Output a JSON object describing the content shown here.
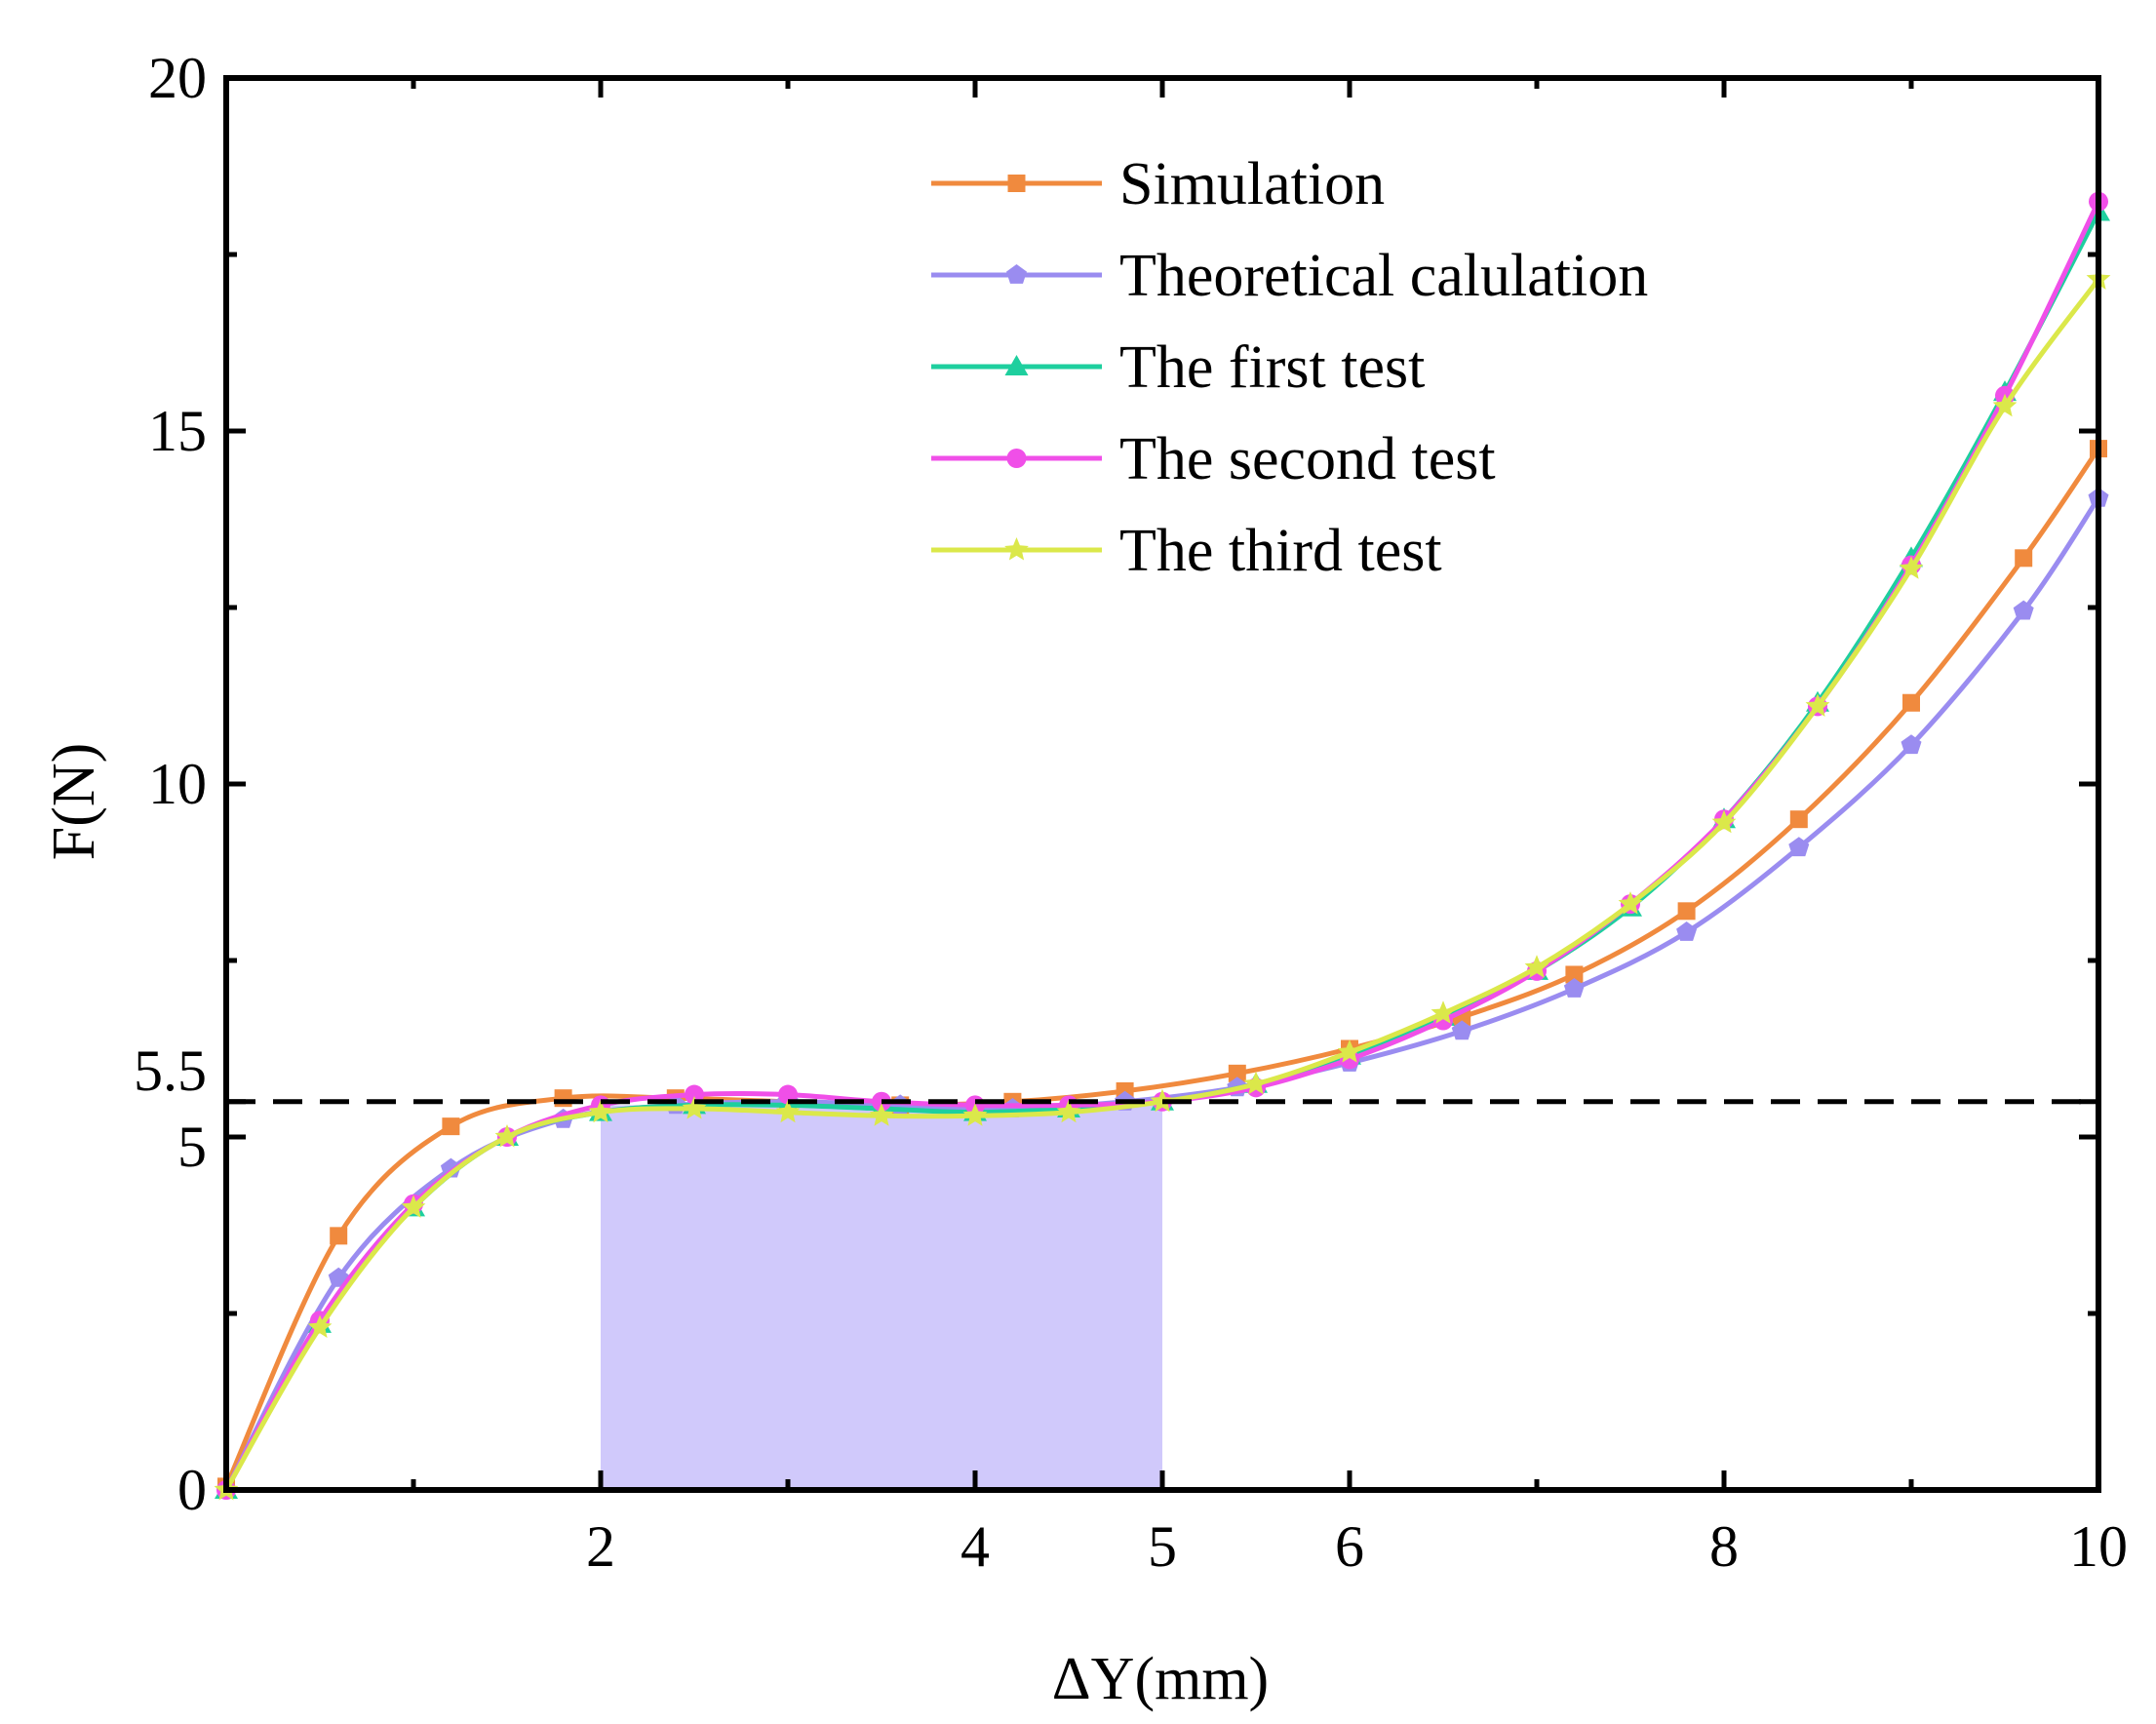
{
  "chart_data": {
    "type": "line",
    "title": "",
    "xlabel": "ΔY(mm)",
    "ylabel": "F(N)",
    "xlim": [
      0,
      10
    ],
    "ylim": [
      0,
      20
    ],
    "x_ticks": [
      {
        "value": 2,
        "label": "2"
      },
      {
        "value": 4,
        "label": "4"
      },
      {
        "value": 5,
        "label": "5"
      },
      {
        "value": 6,
        "label": "6"
      },
      {
        "value": 8,
        "label": "8"
      },
      {
        "value": 10,
        "label": "10"
      }
    ],
    "x_minor_ticks": [
      1,
      3,
      7,
      9
    ],
    "y_ticks": [
      {
        "value": 0,
        "label": "0"
      },
      {
        "value": 5,
        "label": "5"
      },
      {
        "value": 5.5,
        "label": "5.5"
      },
      {
        "value": 10,
        "label": "10"
      },
      {
        "value": 15,
        "label": "15"
      },
      {
        "value": 20,
        "label": "20"
      }
    ],
    "y_minor_ticks": [
      2.5,
      7.5,
      12.5,
      17.5
    ],
    "reference_line": {
      "y": 5.5,
      "style": "dashed",
      "color": "#000000"
    },
    "shaded_region": {
      "x_start": 2,
      "x_end": 5,
      "y_top": 5.45,
      "color": "#d0c9fb"
    },
    "legend_position": "top-center",
    "series": [
      {
        "name": "Simulation",
        "color": "#f08a3e",
        "marker": "square",
        "x": [
          0,
          0.6,
          1.2,
          1.8,
          2.4,
          3.0,
          3.6,
          4.2,
          4.8,
          5.4,
          6.0,
          6.6,
          7.2,
          7.8,
          8.4,
          9.0,
          9.6,
          10.0
        ],
        "y": [
          0.05,
          3.6,
          5.15,
          5.55,
          5.55,
          5.5,
          5.45,
          5.5,
          5.65,
          5.9,
          6.25,
          6.7,
          7.3,
          8.2,
          9.5,
          11.15,
          13.2,
          14.75
        ]
      },
      {
        "name": "Theoretical calulation",
        "color": "#9a8cf0",
        "marker": "pentagon",
        "x": [
          0,
          0.6,
          1.2,
          1.8,
          2.4,
          3.0,
          3.6,
          4.2,
          4.8,
          5.4,
          6.0,
          6.6,
          7.2,
          7.8,
          8.4,
          9.0,
          9.6,
          10.0
        ],
        "y": [
          0.0,
          3.0,
          4.55,
          5.25,
          5.45,
          5.5,
          5.45,
          5.4,
          5.5,
          5.7,
          6.05,
          6.5,
          7.1,
          7.9,
          9.1,
          10.55,
          12.45,
          14.05
        ]
      },
      {
        "name": "The first test",
        "color": "#1ecf9e",
        "marker": "triangle",
        "x": [
          0,
          0.5,
          1.0,
          1.5,
          2.0,
          2.5,
          3.0,
          3.5,
          4.0,
          4.5,
          5.0,
          5.5,
          6.0,
          6.5,
          7.0,
          7.5,
          8.0,
          8.5,
          9.0,
          9.5,
          10.0
        ],
        "y": [
          0.0,
          2.35,
          4.0,
          5.0,
          5.35,
          5.45,
          5.45,
          5.4,
          5.35,
          5.4,
          5.5,
          5.75,
          6.15,
          6.7,
          7.35,
          8.25,
          9.5,
          11.15,
          13.2,
          15.55,
          18.1
        ]
      },
      {
        "name": "The second test",
        "color": "#f04fe8",
        "marker": "circle",
        "x": [
          0,
          0.5,
          1.0,
          1.5,
          2.0,
          2.5,
          3.0,
          3.5,
          4.0,
          4.5,
          5.0,
          5.5,
          6.0,
          6.5,
          7.0,
          7.5,
          8.0,
          8.5,
          9.0,
          9.5,
          10.0
        ],
        "y": [
          0.0,
          2.4,
          4.05,
          5.0,
          5.45,
          5.6,
          5.6,
          5.5,
          5.45,
          5.45,
          5.5,
          5.7,
          6.1,
          6.65,
          7.35,
          8.3,
          9.5,
          11.1,
          13.1,
          15.5,
          18.25
        ]
      },
      {
        "name": "The third test",
        "color": "#dbe84a",
        "marker": "star",
        "x": [
          0,
          0.5,
          1.0,
          1.5,
          2.0,
          2.5,
          3.0,
          3.5,
          4.0,
          4.5,
          5.0,
          5.5,
          6.0,
          6.5,
          7.0,
          7.5,
          8.0,
          8.5,
          9.0,
          9.5,
          10.0
        ],
        "y": [
          0.0,
          2.3,
          4.0,
          5.0,
          5.35,
          5.4,
          5.35,
          5.3,
          5.3,
          5.35,
          5.5,
          5.75,
          6.2,
          6.75,
          7.4,
          8.3,
          9.45,
          11.1,
          13.05,
          15.35,
          17.15
        ]
      }
    ]
  }
}
